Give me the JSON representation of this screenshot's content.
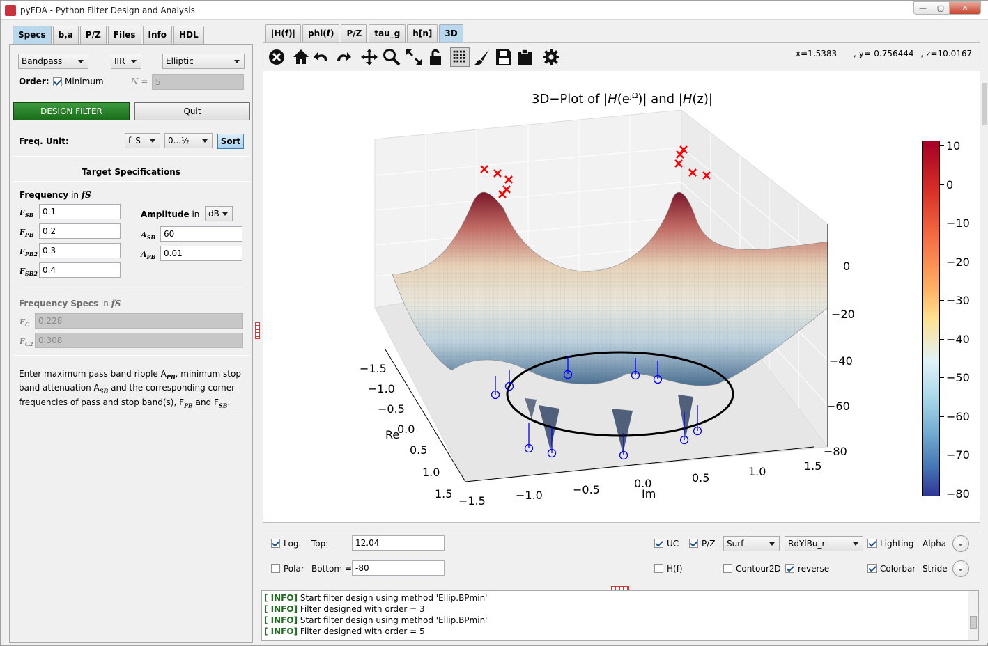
{
  "window": {
    "title": "pyFDA - Python Filter Design and Analysis",
    "min_label": "—",
    "max_label": "▢",
    "close_label": "✕"
  },
  "left_tabs": [
    "Specs",
    "b,a",
    "P/Z",
    "Files",
    "Info",
    "HDL"
  ],
  "filter": {
    "response_type": "Bandpass",
    "filter_type": "IIR",
    "design_method": "Elliptic"
  },
  "order": {
    "label": "Order:",
    "minimum_label": "Minimum",
    "minimum_checked": true,
    "n_label": "N =",
    "n_value": "5"
  },
  "buttons": {
    "design": "DESIGN FILTER",
    "quit": "Quit",
    "sort": "Sort"
  },
  "freq_unit": {
    "label": "Freq. Unit:",
    "unit": "f_S",
    "range": "0...½"
  },
  "target_specs": {
    "title": "Target Specifications",
    "frequency_title": "Frequency",
    "frequency_in": "in",
    "frequency_unit_symbol": "fS",
    "amplitude_title": "Amplitude",
    "amplitude_in": "in",
    "amplitude_unit": "dB",
    "freqs": [
      {
        "label": "F",
        "sub": "SB",
        "value": "0.1"
      },
      {
        "label": "F",
        "sub": "PB",
        "value": "0.2"
      },
      {
        "label": "F",
        "sub": "PB2",
        "value": "0.3"
      },
      {
        "label": "F",
        "sub": "SB2",
        "value": "0.4"
      }
    ],
    "amps": [
      {
        "label": "A",
        "sub": "SB",
        "value": "60"
      },
      {
        "label": "A",
        "sub": "PB",
        "value": "0.01"
      }
    ]
  },
  "frequency_specs": {
    "title": "Frequency Specs",
    "in": "in",
    "unit_symbol": "fS",
    "fields": [
      {
        "label": "F",
        "sub": "C",
        "value": "0.228"
      },
      {
        "label": "F",
        "sub": "C2",
        "value": "0.308"
      }
    ]
  },
  "help_text": {
    "line1": "Enter maximum pass band ripple A",
    "line1_sub": "PB",
    "line1_rest": ", minimum stop",
    "line2": "band attenuation A",
    "line2_sub": "SB",
    "line2_rest": " and the corresponding corner",
    "line3": "frequencies of pass and stop band(s), F",
    "line3_sub1": "PB",
    "line3_mid": " and F",
    "line3_sub2": "SB",
    "line3_end": "."
  },
  "right_tabs": [
    "|H(f)|",
    "phi(f)",
    "P/Z",
    "tau_g",
    "h[n]",
    "3D"
  ],
  "toolbar_icons": [
    "close-icon",
    "home-icon",
    "undo-icon",
    "redo-icon",
    "pan-icon",
    "zoom-icon",
    "fullscreen-icon",
    "lock-icon",
    "grid-icon",
    "brush-icon",
    "save-icon",
    "clipboard-icon",
    "settings-icon"
  ],
  "coords": {
    "x": "x=1.5383",
    "y": ", y=-0.756444",
    "z": ", z=10.0167"
  },
  "plot": {
    "title_prefix": "3D−Plot of |",
    "title_H1": "H",
    "title_e": "(e",
    "title_sup": "jΩ",
    "title_mid": ")| and |",
    "title_H2": "H",
    "title_z": "(z)|",
    "xlabel": "Re",
    "ylabel": "Im",
    "re_ticks": [
      "−1.5",
      "−1.0",
      "−0.5",
      "0.0",
      "0.5",
      "1.0",
      "1.5"
    ],
    "im_ticks": [
      "−1.5",
      "−1.0",
      "−0.5",
      "0.0",
      "0.5",
      "1.0",
      "1.5"
    ],
    "z_ticks": [
      "0",
      "−20",
      "−40",
      "−60",
      "−80"
    ],
    "colorbar_ticks": [
      "10",
      "0",
      "−10",
      "−20",
      "−30",
      "−40",
      "−50",
      "−60",
      "−70",
      "−80"
    ],
    "colormap": [
      "#a50026",
      "#d73027",
      "#f46d43",
      "#fdae61",
      "#fee090",
      "#e0f3f8",
      "#abd9e9",
      "#74add1",
      "#4575b4",
      "#313695"
    ]
  },
  "controls": {
    "log_label": "Log.",
    "log_checked": true,
    "top_label": "Top:",
    "top_value": "12.04",
    "polar_label": "Polar",
    "polar_checked": false,
    "bottom_label": "Bottom =",
    "bottom_value": "-80",
    "uc_label": "UC",
    "uc_checked": true,
    "pz_label": "P/Z",
    "pz_checked": true,
    "plot_style": "Surf",
    "cmap": "RdYlBu_r",
    "lighting_label": "Lighting",
    "lighting_checked": true,
    "alpha_label": "Alpha",
    "hf_label": "H(f)",
    "hf_checked": false,
    "contour_label": "Contour2D",
    "contour_checked": false,
    "reverse_label": "reverse",
    "reverse_checked": true,
    "colorbar_label": "Colorbar",
    "colorbar_checked": true,
    "stride_label": "Stride"
  },
  "log": [
    {
      "tag": "INFO",
      "msg": "Start filter design using method 'Ellip.BPmin'"
    },
    {
      "tag": "INFO",
      "msg": "Filter designed with order = 3"
    },
    {
      "tag": "INFO",
      "msg": "Start filter design using method 'Ellip.BPmin'"
    },
    {
      "tag": "INFO",
      "msg": "Filter designed with order = 5"
    }
  ]
}
